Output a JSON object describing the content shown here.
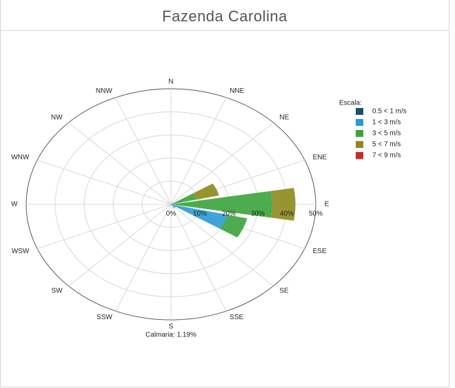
{
  "chart_data": {
    "type": "rose",
    "title": "Fazenda Carolina",
    "categories": [
      "N",
      "NNE",
      "NE",
      "ENE",
      "E",
      "ESE",
      "SE",
      "SSE",
      "S",
      "SSW",
      "SW",
      "WSW",
      "W",
      "WNW",
      "NW",
      "NNW"
    ],
    "series": [
      {
        "name": "0.5 < 1 m/s",
        "color": "#1c4f6e",
        "values": [
          0,
          0,
          0,
          0,
          0,
          0,
          0,
          0,
          0,
          0,
          0,
          0,
          0,
          0,
          0,
          0
        ]
      },
      {
        "name": "1 < 3 m/s",
        "color": "#2a9ad6",
        "values": [
          0,
          0,
          0,
          1,
          1,
          20,
          2,
          0,
          0,
          0,
          0,
          0,
          0,
          0,
          0,
          0
        ]
      },
      {
        "name": "3 < 5 m/s",
        "color": "#3aa33a",
        "values": [
          0,
          0,
          0,
          8,
          34,
          7,
          0,
          0,
          0,
          0,
          0,
          0,
          0,
          0,
          0,
          0
        ]
      },
      {
        "name": "5 < 7 m/s",
        "color": "#8c8a1c",
        "values": [
          0,
          0,
          0,
          8,
          8,
          0,
          0,
          0,
          0,
          0,
          0,
          0,
          0,
          0,
          0,
          0
        ]
      },
      {
        "name": "7 < 9 m/s",
        "color": "#d62728",
        "values": [
          0,
          0,
          0,
          0,
          0,
          0,
          0,
          0,
          0,
          0,
          0,
          0,
          0,
          0,
          0,
          0
        ]
      }
    ],
    "rlim": [
      0,
      50
    ],
    "rticks": [
      {
        "value": 0,
        "label": "0%"
      },
      {
        "value": 10,
        "label": "10%"
      },
      {
        "value": 20,
        "label": "20%"
      },
      {
        "value": 30,
        "label": "30%"
      },
      {
        "value": 40,
        "label": "40%"
      },
      {
        "value": 50,
        "label": "50%"
      }
    ],
    "legend_title": "Escala:",
    "annotation": "Calmaria: 1.19%"
  }
}
